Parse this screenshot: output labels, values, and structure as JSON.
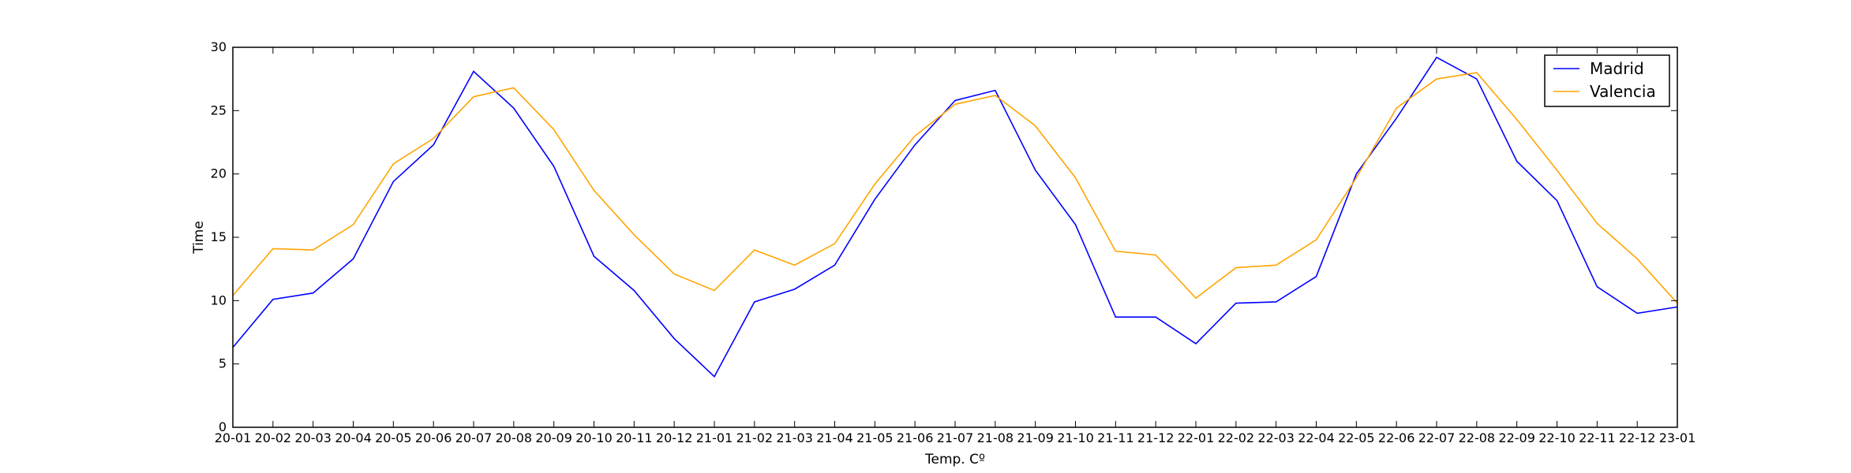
{
  "chart_data": {
    "type": "line",
    "title": "",
    "xlabel": "Temp. Cº",
    "ylabel": "Time",
    "ylim": [
      0,
      30
    ],
    "yticks": [
      "0",
      "5",
      "10",
      "15",
      "20",
      "25",
      "30"
    ],
    "grid": false,
    "legend_position": "top-right",
    "categories": [
      "20-01",
      "20-02",
      "20-03",
      "20-04",
      "20-05",
      "20-06",
      "20-07",
      "20-08",
      "20-09",
      "20-10",
      "20-11",
      "20-12",
      "21-01",
      "21-02",
      "21-03",
      "21-04",
      "21-05",
      "21-06",
      "21-07",
      "21-08",
      "21-09",
      "21-10",
      "21-11",
      "21-12",
      "22-01",
      "22-02",
      "22-03",
      "22-04",
      "22-05",
      "22-06",
      "22-07",
      "22-08",
      "22-09",
      "22-10",
      "22-11",
      "22-12",
      "23-01"
    ],
    "series": [
      {
        "name": "Madrid",
        "color": "#0000ff",
        "values": [
          6.3,
          10.1,
          10.6,
          13.3,
          19.4,
          22.3,
          28.1,
          25.2,
          20.6,
          13.5,
          10.8,
          7.0,
          4.0,
          9.9,
          10.9,
          12.8,
          18.0,
          22.3,
          25.8,
          26.6,
          20.3,
          16.0,
          8.7,
          8.7,
          6.6,
          9.8,
          9.9,
          11.9,
          20.0,
          24.4,
          29.2,
          27.5,
          21.0,
          17.9,
          11.1,
          9.0,
          9.5
        ]
      },
      {
        "name": "Valencia",
        "color": "#ffa500",
        "values": [
          10.4,
          14.1,
          14.0,
          16.0,
          20.8,
          22.8,
          26.1,
          26.8,
          23.5,
          18.7,
          15.2,
          12.1,
          10.8,
          14.0,
          12.8,
          14.5,
          19.2,
          23.0,
          25.5,
          26.2,
          23.8,
          19.7,
          13.9,
          13.6,
          10.2,
          12.6,
          12.8,
          14.8,
          19.7,
          25.2,
          27.5,
          28.0,
          24.3,
          20.3,
          16.1,
          13.3,
          9.8
        ]
      }
    ]
  }
}
